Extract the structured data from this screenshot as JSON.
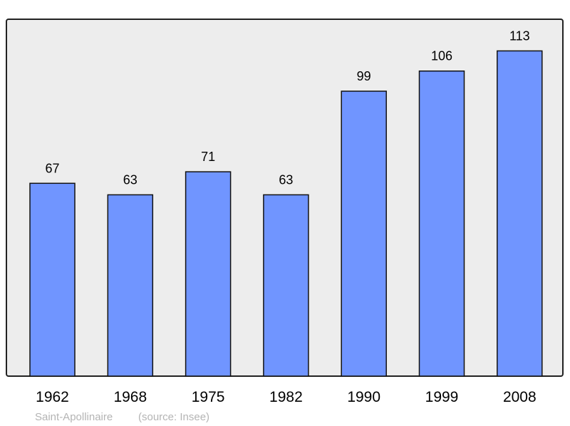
{
  "chart_data": {
    "type": "bar",
    "categories": [
      "1962",
      "1968",
      "1975",
      "1982",
      "1990",
      "1999",
      "2008"
    ],
    "values": [
      67,
      63,
      71,
      63,
      99,
      106,
      113
    ],
    "ylim": [
      0,
      124
    ],
    "grid": false,
    "bar_color": "#7095ff",
    "background_color": "#ededed"
  },
  "footer": {
    "place": "Saint-Apollinaire",
    "source": "(source: Insee)"
  }
}
